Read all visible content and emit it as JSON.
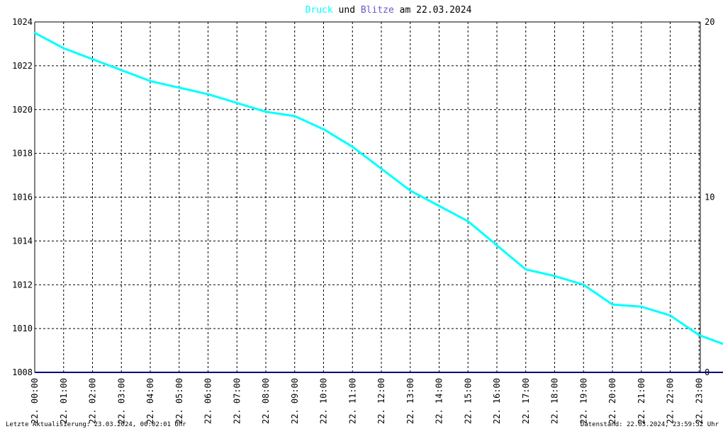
{
  "title": {
    "part1": "Druck",
    "part2": " und ",
    "part3": "Blitze",
    "part4": " am 22.03.2024"
  },
  "colors": {
    "druck": "#00ffff",
    "blitze": "#6a5acd",
    "baseline": "#000080",
    "grid": "#000000",
    "title": "#000000"
  },
  "footer": {
    "left": "Letzte Aktualisierung: 23.03.2024, 00:02:01 Uhr",
    "right": "Datenstand: 22.03.2024, 23:59:32 Uhr"
  },
  "chart_data": {
    "type": "line",
    "grid": true,
    "x": [
      "00:00",
      "01:00",
      "02:00",
      "03:00",
      "04:00",
      "05:00",
      "06:00",
      "07:00",
      "08:00",
      "09:00",
      "10:00",
      "11:00",
      "12:00",
      "13:00",
      "14:00",
      "15:00",
      "16:00",
      "17:00",
      "18:00",
      "19:00",
      "20:00",
      "21:00",
      "22:00",
      "23:00",
      "23:50"
    ],
    "x_tick_labels": [
      "22. 00:00",
      "22. 01:00",
      "22. 02:00",
      "22. 03:00",
      "22. 04:00",
      "22. 05:00",
      "22. 06:00",
      "22. 07:00",
      "22. 08:00",
      "22. 09:00",
      "22. 10:00",
      "22. 11:00",
      "22. 12:00",
      "22. 13:00",
      "22. 14:00",
      "22. 15:00",
      "22. 16:00",
      "22. 17:00",
      "22. 18:00",
      "22. 19:00",
      "22. 20:00",
      "22. 21:00",
      "22. 22:00",
      "22. 23:00"
    ],
    "y_left_ticks": [
      "1008",
      "1010",
      "1012",
      "1014",
      "1016",
      "1018",
      "1020",
      "1022",
      "1024"
    ],
    "y_right_ticks": [
      "0",
      "10",
      "20"
    ],
    "ylim_left": [
      1008,
      1024
    ],
    "ylim_right": [
      0,
      20
    ],
    "series": [
      {
        "name": "Druck",
        "axis": "left",
        "color": "#00ffff",
        "values": [
          1023.5,
          1022.8,
          1022.3,
          1021.8,
          1021.3,
          1021.0,
          1020.7,
          1020.3,
          1019.9,
          1019.7,
          1019.1,
          1018.3,
          1017.3,
          1016.3,
          1015.6,
          1014.9,
          1013.8,
          1012.7,
          1012.4,
          1012.0,
          1011.1,
          1011.0,
          1010.6,
          1009.7,
          1009.3
        ]
      },
      {
        "name": "Blitze",
        "axis": "right",
        "color": "#6a5acd",
        "values": [
          0,
          0,
          0,
          0,
          0,
          0,
          0,
          0,
          0,
          0,
          0,
          0,
          0,
          0,
          0,
          0,
          0,
          0,
          0,
          0,
          0,
          0,
          0,
          0,
          0
        ]
      }
    ]
  }
}
